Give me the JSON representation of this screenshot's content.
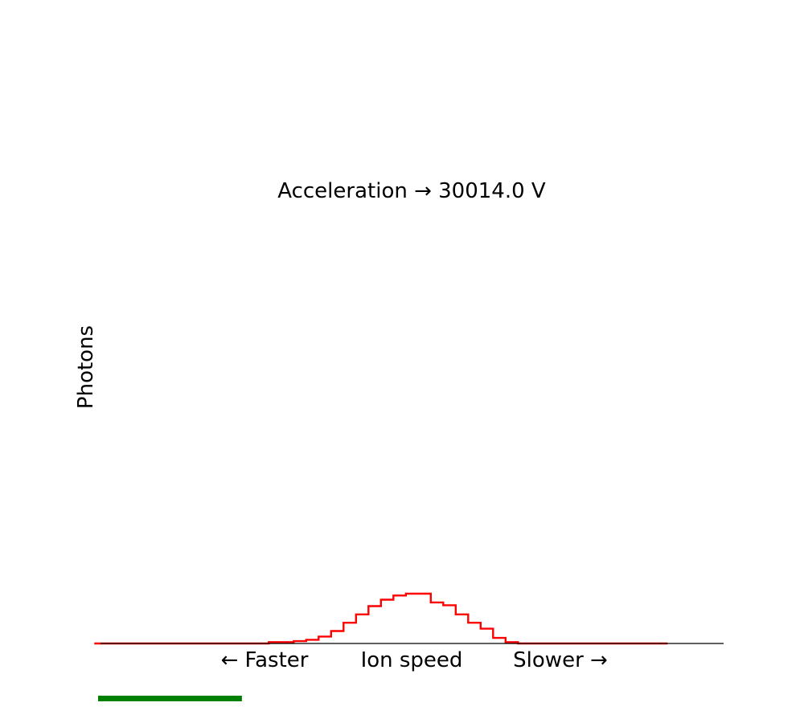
{
  "chart_data": {
    "type": "line",
    "step": true,
    "title": "Acceleration → 30014.0 V",
    "xlabel": "Ion speed",
    "xlabel_left": "← Faster",
    "xlabel_right": "Slower →",
    "ylabel": "Photons",
    "xlim": [
      0,
      50
    ],
    "ylim": [
      0,
      100
    ],
    "grid": false,
    "series": [
      {
        "color": "#ff0000",
        "x": [
          0,
          1,
          2,
          3,
          4,
          5,
          6,
          7,
          8,
          9,
          10,
          11,
          12,
          13,
          14,
          15,
          16,
          17,
          18,
          19,
          20,
          21,
          22,
          23,
          24,
          25,
          26,
          27,
          28,
          29,
          30,
          31,
          32,
          33,
          34,
          35,
          36,
          37,
          38,
          39,
          40,
          41,
          42,
          43,
          44,
          45
        ],
        "values": [
          0,
          0,
          0,
          0,
          0,
          0,
          0,
          0,
          0,
          0,
          0,
          0,
          0,
          0,
          0.3,
          0.3,
          0.5,
          0.8,
          1.5,
          2.7,
          4.5,
          6.3,
          8.1,
          9.5,
          10.4,
          10.8,
          10.8,
          8.9,
          8.3,
          6.3,
          4.5,
          3.2,
          1.2,
          0.3,
          0,
          0,
          0,
          0,
          0,
          0,
          0,
          0,
          0,
          0,
          0,
          0
        ]
      }
    ]
  },
  "progress": {
    "color": "#008000",
    "value": 0.23
  }
}
